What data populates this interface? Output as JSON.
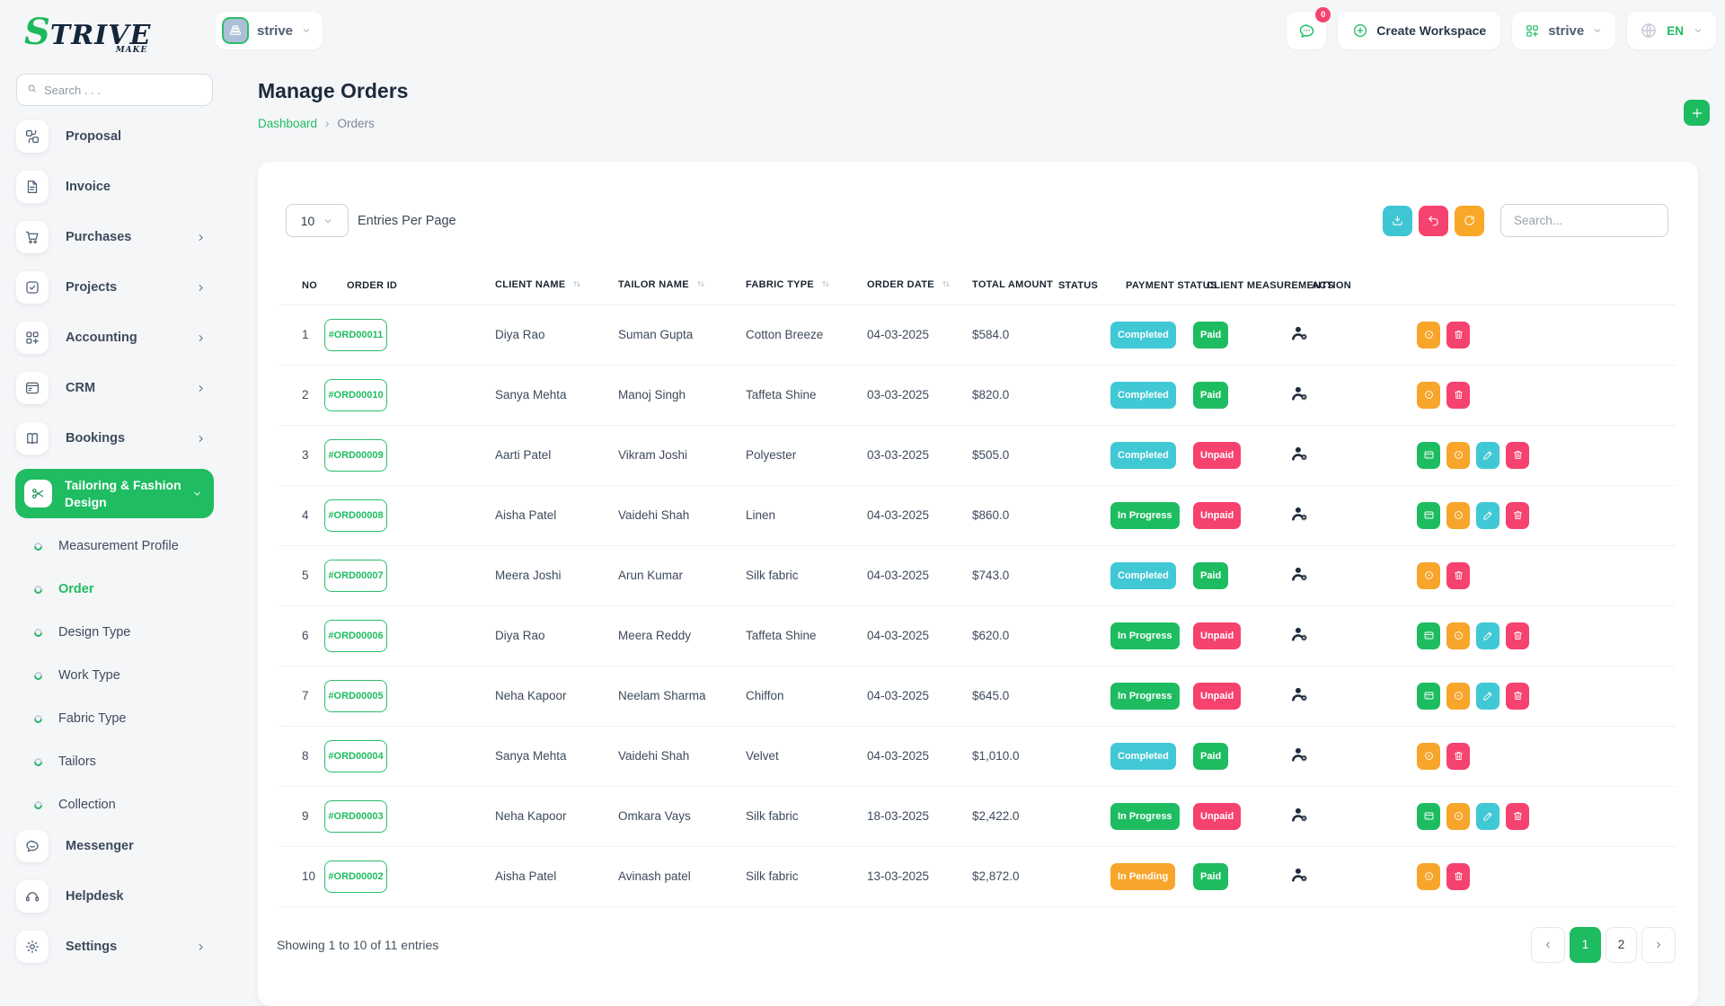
{
  "brand": {
    "logo_s": "S",
    "logo_rest": "TRIVE",
    "logo_sub": "MAKE"
  },
  "colors": {
    "green": "#1ebc61",
    "cyan": "#41c8d5",
    "pink": "#f5426e",
    "orange": "#f7a52b",
    "dark": "#1d2b3d"
  },
  "sidebar": {
    "search_placeholder": "Search . . .",
    "items": [
      {
        "label": "Proposal",
        "icon": "proposal",
        "arrow": false
      },
      {
        "label": "Invoice",
        "icon": "invoice",
        "arrow": false
      },
      {
        "label": "Purchases",
        "icon": "purchases",
        "arrow": true
      },
      {
        "label": "Projects",
        "icon": "projects",
        "arrow": true
      },
      {
        "label": "Accounting",
        "icon": "accounting",
        "arrow": true
      },
      {
        "label": "CRM",
        "icon": "crm",
        "arrow": true
      },
      {
        "label": "Bookings",
        "icon": "bookings",
        "arrow": true
      }
    ],
    "active_group": {
      "label": "Tailoring & Fashion Design",
      "icon": "scissors"
    },
    "submenu": [
      {
        "label": "Measurement Profile",
        "active": false
      },
      {
        "label": "Order",
        "active": true
      },
      {
        "label": "Design Type",
        "active": false
      },
      {
        "label": "Work Type",
        "active": false
      },
      {
        "label": "Fabric Type",
        "active": false
      },
      {
        "label": "Tailors",
        "active": false
      },
      {
        "label": "Collection",
        "active": false
      }
    ],
    "bottom_items": [
      {
        "label": "Messenger",
        "icon": "messenger",
        "arrow": false
      },
      {
        "label": "Helpdesk",
        "icon": "helpdesk",
        "arrow": false
      },
      {
        "label": "Settings",
        "icon": "settings",
        "arrow": true
      }
    ]
  },
  "topbar": {
    "workspace_name": "strive",
    "chat_badge": "0",
    "create_workspace_label": "Create Workspace",
    "workspace_switcher": "strive",
    "language": "EN"
  },
  "page": {
    "title": "Manage Orders",
    "breadcrumb_home": "Dashboard",
    "breadcrumb_sep": "›",
    "breadcrumb_current": "Orders"
  },
  "controls": {
    "entries_value": "10",
    "entries_label": "Entries Per Page",
    "search_placeholder": "Search..."
  },
  "table": {
    "headers": [
      {
        "label": "NO",
        "sortable": false
      },
      {
        "label": "ORDER ID",
        "sortable": false
      },
      {
        "label": "CLIENT NAME",
        "sortable": true
      },
      {
        "label": "TAILOR NAME",
        "sortable": true
      },
      {
        "label": "FABRIC TYPE",
        "sortable": true
      },
      {
        "label": "ORDER DATE",
        "sortable": true
      },
      {
        "label": "TOTAL AMOUNT",
        "sortable": true
      },
      {
        "label": "STATUS",
        "sortable": false
      },
      {
        "label": "PAYMENT STATUS",
        "sortable": false
      },
      {
        "label": "CLIENT MEASUREMENTS",
        "sortable": false
      },
      {
        "label": "ACTION",
        "sortable": false
      }
    ],
    "rows": [
      {
        "no": "1",
        "order_id": "#ORD00011",
        "client": "Diya Rao",
        "tailor": "Suman Gupta",
        "fabric": "Cotton Breeze",
        "date": "04-03-2025",
        "amount": "$584.0",
        "status": "Completed",
        "status_color": "cyan",
        "payment": "Paid",
        "payment_color": "green",
        "actions": [
          "view",
          "del"
        ]
      },
      {
        "no": "2",
        "order_id": "#ORD00010",
        "client": "Sanya Mehta",
        "tailor": "Manoj Singh",
        "fabric": "Taffeta Shine",
        "date": "03-03-2025",
        "amount": "$820.0",
        "status": "Completed",
        "status_color": "cyan",
        "payment": "Paid",
        "payment_color": "green",
        "actions": [
          "view",
          "del"
        ]
      },
      {
        "no": "3",
        "order_id": "#ORD00009",
        "client": "Aarti Patel",
        "tailor": "Vikram Joshi",
        "fabric": "Polyester",
        "date": "03-03-2025",
        "amount": "$505.0",
        "status": "Completed",
        "status_color": "cyan",
        "payment": "Unpaid",
        "payment_color": "pink",
        "actions": [
          "pay",
          "view",
          "edit",
          "del"
        ]
      },
      {
        "no": "4",
        "order_id": "#ORD00008",
        "client": "Aisha Patel",
        "tailor": "Vaidehi Shah",
        "fabric": "Linen",
        "date": "04-03-2025",
        "amount": "$860.0",
        "status": "In Progress",
        "status_color": "green",
        "payment": "Unpaid",
        "payment_color": "pink",
        "actions": [
          "pay",
          "view",
          "edit",
          "del"
        ]
      },
      {
        "no": "5",
        "order_id": "#ORD00007",
        "client": "Meera Joshi",
        "tailor": "Arun Kumar",
        "fabric": "Silk fabric",
        "date": "04-03-2025",
        "amount": "$743.0",
        "status": "Completed",
        "status_color": "cyan",
        "payment": "Paid",
        "payment_color": "green",
        "actions": [
          "view",
          "del"
        ]
      },
      {
        "no": "6",
        "order_id": "#ORD00006",
        "client": "Diya Rao",
        "tailor": "Meera Reddy",
        "fabric": "Taffeta Shine",
        "date": "04-03-2025",
        "amount": "$620.0",
        "status": "In Progress",
        "status_color": "green",
        "payment": "Unpaid",
        "payment_color": "pink",
        "actions": [
          "pay",
          "view",
          "edit",
          "del"
        ]
      },
      {
        "no": "7",
        "order_id": "#ORD00005",
        "client": "Neha Kapoor",
        "tailor": "Neelam Sharma",
        "fabric": "Chiffon",
        "date": "04-03-2025",
        "amount": "$645.0",
        "status": "In Progress",
        "status_color": "green",
        "payment": "Unpaid",
        "payment_color": "pink",
        "actions": [
          "pay",
          "view",
          "edit",
          "del"
        ]
      },
      {
        "no": "8",
        "order_id": "#ORD00004",
        "client": "Sanya Mehta",
        "tailor": "Vaidehi Shah",
        "fabric": "Velvet",
        "date": "04-03-2025",
        "amount": "$1,010.0",
        "status": "Completed",
        "status_color": "cyan",
        "payment": "Paid",
        "payment_color": "green",
        "actions": [
          "view",
          "del"
        ]
      },
      {
        "no": "9",
        "order_id": "#ORD00003",
        "client": "Neha Kapoor",
        "tailor": "Omkara Vays",
        "fabric": "Silk fabric",
        "date": "18-03-2025",
        "amount": "$2,422.0",
        "status": "In Progress",
        "status_color": "green",
        "payment": "Unpaid",
        "payment_color": "pink",
        "actions": [
          "pay",
          "view",
          "edit",
          "del"
        ]
      },
      {
        "no": "10",
        "order_id": "#ORD00002",
        "client": "Aisha Patel",
        "tailor": "Avinash patel",
        "fabric": "Silk fabric",
        "date": "13-03-2025",
        "amount": "$2,872.0",
        "status": "In Pending",
        "status_color": "orange",
        "payment": "Paid",
        "payment_color": "green",
        "actions": [
          "view",
          "del"
        ]
      }
    ]
  },
  "footer": {
    "showing": "Showing 1 to 10 of 11 entries",
    "pages": [
      "1",
      "2"
    ],
    "active_page": "1"
  }
}
